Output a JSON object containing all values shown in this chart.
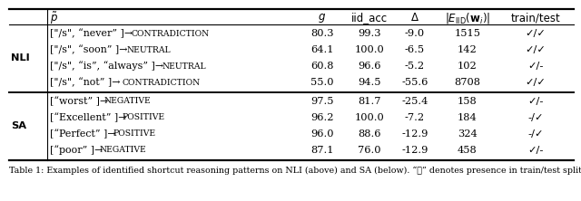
{
  "sections": [
    {
      "label": "NLI",
      "rows": [
        {
          "p_plain": "[\"/s\", “never” ]→ ",
          "p_label": "Contradiction",
          "g": "80.3",
          "iid_acc": "99.3",
          "delta": "-9.0",
          "esize": "1515",
          "tt_left": "✓",
          "tt_right": "✓"
        },
        {
          "p_plain": "[\"/s\", “soon” ]→ ",
          "p_label": "Neutral",
          "g": "64.1",
          "iid_acc": "100.0",
          "delta": "-6.5",
          "esize": "142",
          "tt_left": "✓",
          "tt_right": "✓"
        },
        {
          "p_plain": "[\"/s\", “is”, “always” ]→ ",
          "p_label": "Neutral",
          "g": "60.8",
          "iid_acc": "96.6",
          "delta": "-5.2",
          "esize": "102",
          "tt_left": "✓",
          "tt_right": "-"
        },
        {
          "p_plain": "[\"/s\", “not” ]→ ",
          "p_label": "Contradiction",
          "g": "55.0",
          "iid_acc": "94.5",
          "delta": "-55.6",
          "esize": "8708",
          "tt_left": "✓",
          "tt_right": "✓"
        }
      ]
    },
    {
      "label": "SA",
      "rows": [
        {
          "p_plain": "[“worst” ]→ ",
          "p_label": "Negative",
          "g": "97.5",
          "iid_acc": "81.7",
          "delta": "-25.4",
          "esize": "158",
          "tt_left": "✓",
          "tt_right": "-"
        },
        {
          "p_plain": "[“Excellent” ]→ ",
          "p_label": "Positive",
          "g": "96.2",
          "iid_acc": "100.0",
          "delta": "-7.2",
          "esize": "184",
          "tt_left": "-",
          "tt_right": "✓"
        },
        {
          "p_plain": "[“Perfect” ]→ ",
          "p_label": "Positive",
          "g": "96.0",
          "iid_acc": "88.6",
          "delta": "-12.9",
          "esize": "324",
          "tt_left": "-",
          "tt_right": "✓"
        },
        {
          "p_plain": "[“poor” ]→ ",
          "p_label": "Negative",
          "g": "87.1",
          "iid_acc": "76.0",
          "delta": "-12.9",
          "esize": "458",
          "tt_left": "✓",
          "tt_right": "-"
        }
      ]
    }
  ],
  "caption": "Table 1: Examples of identified shortcut reasoning patterns on NLI (above) and SA (below). “✓” denotes presence in train/test split.",
  "bg": "#ffffff",
  "fg": "#000000"
}
